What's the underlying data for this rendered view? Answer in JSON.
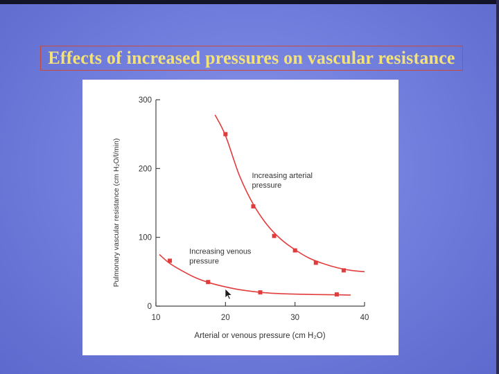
{
  "slide": {
    "title": "Effects of increased pressures on vascular resistance"
  },
  "chart_data": {
    "type": "line",
    "xlabel": "Arterial or venous pressure (cm H₂O)",
    "ylabel": "Pulmonary vascular resistance (cm H₂O/l/min)",
    "xlim": [
      10,
      40
    ],
    "ylim": [
      0,
      300
    ],
    "xticks": [
      10,
      20,
      30,
      40
    ],
    "yticks": [
      0,
      100,
      200,
      300
    ],
    "grid": false,
    "series": [
      {
        "name": "Increasing arterial pressure",
        "color": "#e23b3b",
        "x": [
          20,
          24,
          27,
          30,
          33,
          37
        ],
        "y": [
          250,
          145,
          102,
          81,
          63,
          52
        ],
        "curve_x": [
          18.5,
          20,
          22,
          24,
          26,
          28,
          30,
          32,
          34,
          36,
          38,
          40
        ],
        "curve_y": [
          278,
          248,
          190,
          148,
          118,
          97,
          82,
          70,
          62,
          56,
          52,
          50
        ]
      },
      {
        "name": "Increasing venous pressure",
        "color": "#e23b3b",
        "x": [
          12,
          17.5,
          25,
          36
        ],
        "y": [
          66,
          35,
          20,
          17
        ],
        "curve_x": [
          10.5,
          12,
          14,
          16,
          18,
          20,
          22,
          25,
          28,
          32,
          36,
          38
        ],
        "curve_y": [
          75,
          62,
          50,
          40,
          33,
          28,
          24,
          20,
          18,
          17,
          16.5,
          16
        ]
      }
    ],
    "annotations": [
      {
        "text": [
          "Increasing arterial",
          "pressure"
        ],
        "series": 0,
        "x": 23.8,
        "y": 186
      },
      {
        "text": [
          "Increasing venous",
          "pressure"
        ],
        "series": 1,
        "x": 14.8,
        "y": 76
      }
    ]
  },
  "icons": {
    "cursor": "mouse-pointer-icon"
  }
}
